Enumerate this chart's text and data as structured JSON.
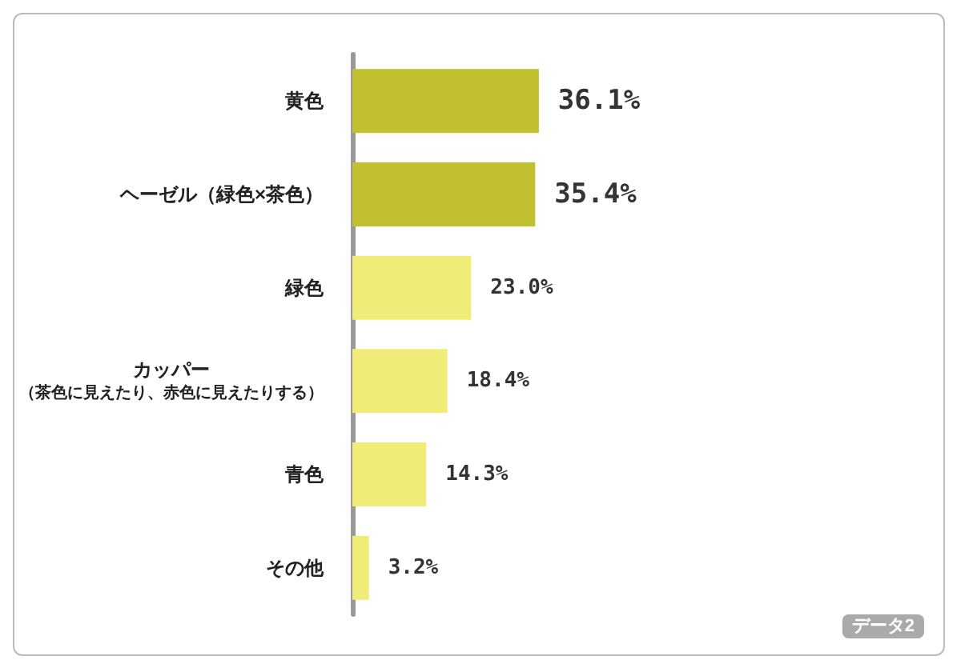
{
  "chart_data": {
    "type": "bar",
    "orientation": "horizontal",
    "categories": [
      "黄色",
      "ヘーゼル（緑色×茶色）",
      "緑色",
      "カッパー（茶色に見えたり、赤色に見えたりする）",
      "青色",
      "その他"
    ],
    "values": [
      36.1,
      35.4,
      23.0,
      18.4,
      14.3,
      3.2
    ],
    "value_labels": [
      "36.1%",
      "35.4%",
      "23.0%",
      "18.4%",
      "14.3%",
      "3.2%"
    ],
    "colors": [
      "#c0c030",
      "#c0c030",
      "#f0ec78",
      "#f0ec78",
      "#f0ec78",
      "#f0ec78"
    ],
    "annotations": [
      "データ2"
    ]
  }
}
